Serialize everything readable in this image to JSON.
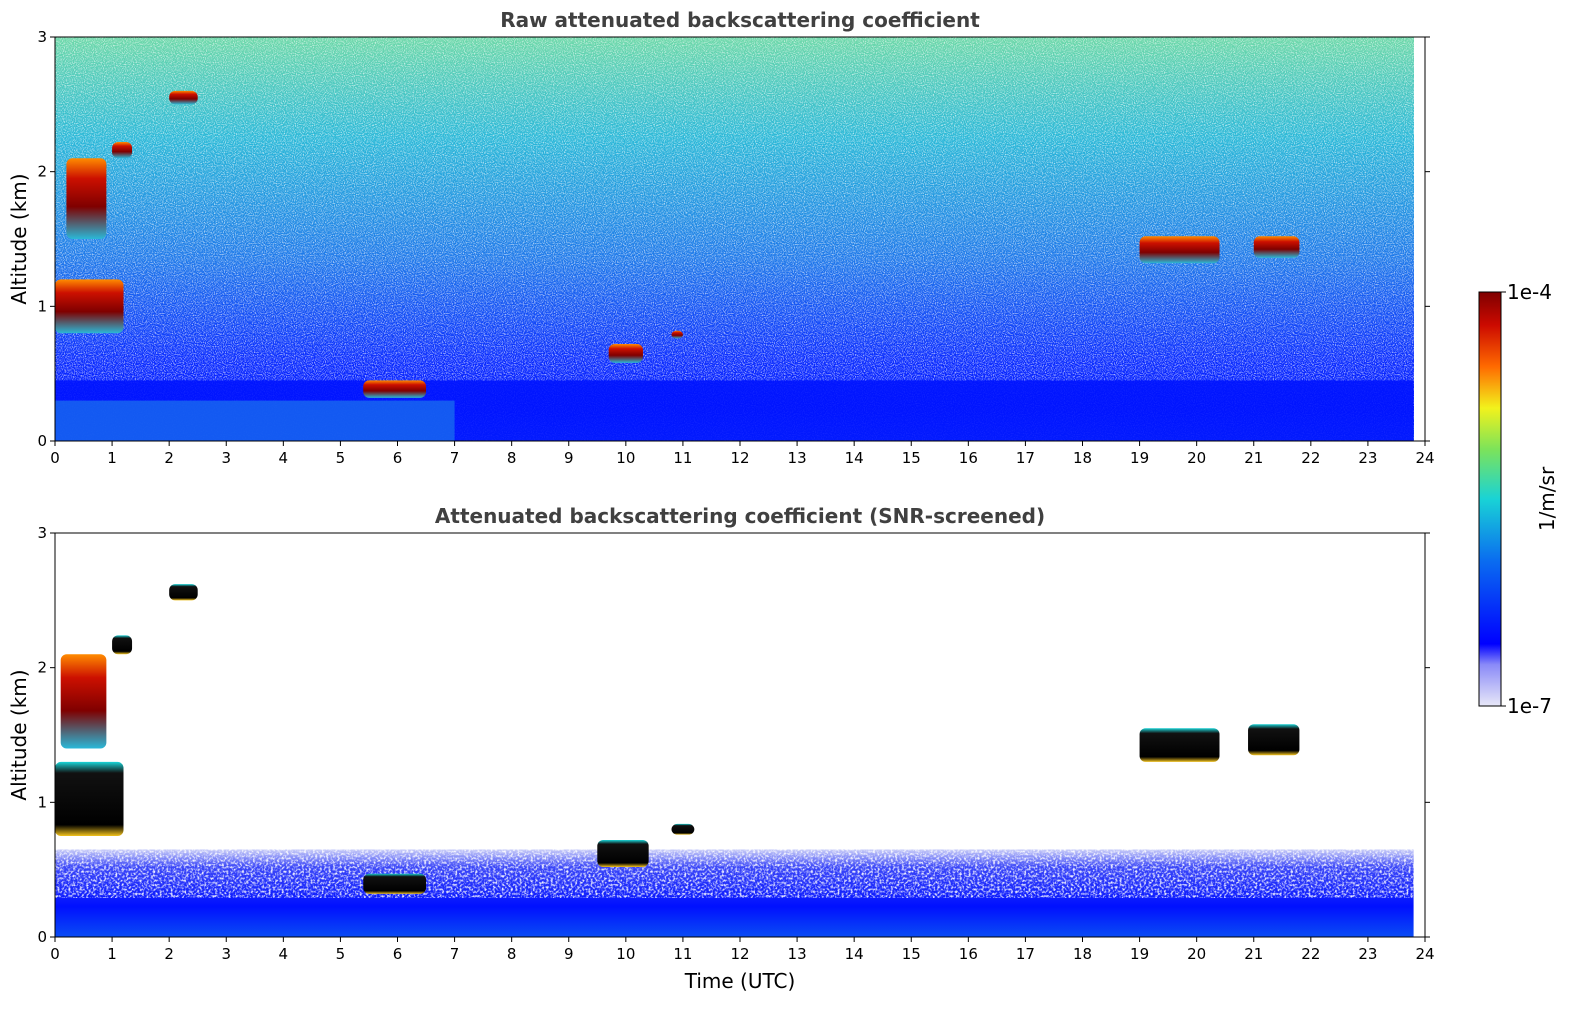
{
  "chart_data": [
    {
      "type": "heatmap",
      "title": "Raw attenuated backscattering coefficient",
      "xlabel": "",
      "ylabel": "Altitude (km)",
      "xlim": [
        0,
        24
      ],
      "ylim": [
        0,
        3
      ],
      "xticks": [
        "0",
        "1",
        "2",
        "3",
        "4",
        "5",
        "6",
        "7",
        "8",
        "9",
        "10",
        "11",
        "12",
        "13",
        "14",
        "15",
        "16",
        "17",
        "18",
        "19",
        "20",
        "21",
        "22",
        "23",
        "24"
      ],
      "yticks": [
        "0",
        "1",
        "2",
        "3"
      ],
      "grid": false,
      "features": [
        {
          "name": "boundary layer aerosol",
          "x": [
            0,
            23.8
          ],
          "y": [
            0,
            0.45
          ],
          "level": "low"
        },
        {
          "name": "cloud",
          "x": [
            2.0,
            2.5
          ],
          "y": [
            2.5,
            2.6
          ],
          "level": "high"
        },
        {
          "name": "cloud",
          "x": [
            1.0,
            1.35
          ],
          "y": [
            2.1,
            2.22
          ],
          "level": "high"
        },
        {
          "name": "cloud",
          "x": [
            0.2,
            0.9
          ],
          "y": [
            1.5,
            2.1
          ],
          "level": "high"
        },
        {
          "name": "cloud",
          "x": [
            0.0,
            1.2
          ],
          "y": [
            0.8,
            1.2
          ],
          "level": "high"
        },
        {
          "name": "cloud",
          "x": [
            5.4,
            6.5
          ],
          "y": [
            0.32,
            0.45
          ],
          "level": "high"
        },
        {
          "name": "cloud",
          "x": [
            9.7,
            10.3
          ],
          "y": [
            0.58,
            0.72
          ],
          "level": "high"
        },
        {
          "name": "cloud",
          "x": [
            10.8,
            11.0
          ],
          "y": [
            0.76,
            0.82
          ],
          "level": "high"
        },
        {
          "name": "cloud",
          "x": [
            19.0,
            20.4
          ],
          "y": [
            1.32,
            1.52
          ],
          "level": "high"
        },
        {
          "name": "cloud",
          "x": [
            21.0,
            21.8
          ],
          "y": [
            1.36,
            1.52
          ],
          "level": "high"
        }
      ]
    },
    {
      "type": "heatmap",
      "title": "Attenuated backscattering coefficient (SNR-screened)",
      "xlabel": "Time (UTC)",
      "ylabel": "Altitude (km)",
      "xlim": [
        0,
        24
      ],
      "ylim": [
        0,
        3
      ],
      "xticks": [
        "0",
        "1",
        "2",
        "3",
        "4",
        "5",
        "6",
        "7",
        "8",
        "9",
        "10",
        "11",
        "12",
        "13",
        "14",
        "15",
        "16",
        "17",
        "18",
        "19",
        "20",
        "21",
        "22",
        "23",
        "24"
      ],
      "yticks": [
        "0",
        "1",
        "2",
        "3"
      ],
      "grid": false,
      "features": [
        {
          "name": "boundary layer aerosol",
          "x": [
            0,
            23.8
          ],
          "y": [
            0,
            0.65
          ],
          "level": "low"
        },
        {
          "name": "cloud",
          "x": [
            2.0,
            2.5
          ],
          "y": [
            2.5,
            2.62
          ],
          "level": "saturated"
        },
        {
          "name": "cloud",
          "x": [
            1.0,
            1.35
          ],
          "y": [
            2.1,
            2.24
          ],
          "level": "saturated"
        },
        {
          "name": "cloud",
          "x": [
            0.1,
            0.9
          ],
          "y": [
            1.4,
            2.1
          ],
          "level": "high"
        },
        {
          "name": "cloud",
          "x": [
            0.0,
            1.2
          ],
          "y": [
            0.75,
            1.3
          ],
          "level": "saturated"
        },
        {
          "name": "cloud",
          "x": [
            5.4,
            6.5
          ],
          "y": [
            0.32,
            0.47
          ],
          "level": "saturated"
        },
        {
          "name": "cloud",
          "x": [
            9.5,
            10.4
          ],
          "y": [
            0.52,
            0.72
          ],
          "level": "saturated"
        },
        {
          "name": "cloud",
          "x": [
            10.8,
            11.2
          ],
          "y": [
            0.76,
            0.84
          ],
          "level": "saturated"
        },
        {
          "name": "cloud",
          "x": [
            19.0,
            20.4
          ],
          "y": [
            1.3,
            1.55
          ],
          "level": "saturated"
        },
        {
          "name": "cloud",
          "x": [
            20.9,
            21.8
          ],
          "y": [
            1.35,
            1.58
          ],
          "level": "saturated"
        }
      ]
    }
  ],
  "colorbar": {
    "label": "1/m/sr",
    "max_label": "1e-4",
    "min_label": "1e-7",
    "colors": [
      "#e8e8f8",
      "#0000ff",
      "#0a6cf0",
      "#19d3d6",
      "#7ce35a",
      "#f2f21c",
      "#ff6a00",
      "#cc0a00",
      "#7f0000"
    ]
  }
}
